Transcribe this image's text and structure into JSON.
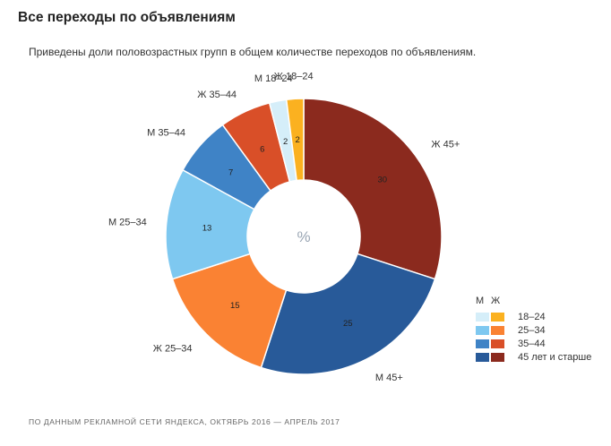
{
  "header": {
    "title": "Все переходы по объявлениям",
    "subtitle": "Приведены доли половозрастных групп в общем количестве переходов по объявлениям."
  },
  "footer": "По данным рекламной сети Яндекса, октябрь 2016 — апрель 2017",
  "chart_data": {
    "type": "pie",
    "center_label": "%",
    "slices": [
      {
        "label": "Ж 45+",
        "value": 30,
        "color": "#8b2a1e"
      },
      {
        "label": "М 45+",
        "value": 25,
        "color": "#285a99"
      },
      {
        "label": "Ж 25–34",
        "value": 15,
        "color": "#fa8233"
      },
      {
        "label": "М 25–34",
        "value": 13,
        "color": "#7ec8f0"
      },
      {
        "label": "М 35–44",
        "value": 7,
        "color": "#3f83c6"
      },
      {
        "label": "Ж 35–44",
        "value": 6,
        "color": "#d94f28"
      },
      {
        "label": "М 18–24",
        "value": 2,
        "color": "#d5eef9"
      },
      {
        "label": "Ж 18–24",
        "value": 2,
        "color": "#fbb120"
      }
    ]
  },
  "legend": {
    "head_m": "М",
    "head_f": "Ж",
    "rows": [
      {
        "label": "18–24",
        "m_color": "#d5eef9",
        "f_color": "#fbb120"
      },
      {
        "label": "25–34",
        "m_color": "#7ec8f0",
        "f_color": "#fa8233"
      },
      {
        "label": "35–44",
        "m_color": "#3f83c6",
        "f_color": "#d94f28"
      },
      {
        "label": "45 лет и старше",
        "m_color": "#285a99",
        "f_color": "#8b2a1e"
      }
    ]
  }
}
